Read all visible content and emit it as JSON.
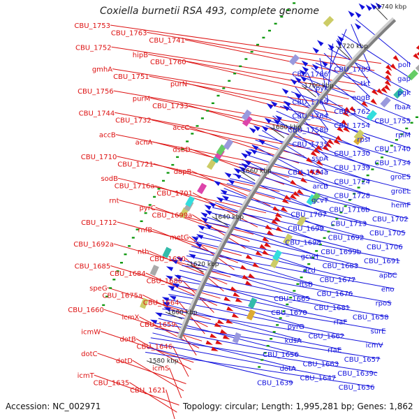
{
  "title": "Coxiella burnetii RSA 493, complete genome",
  "accession_text": "Accession: NC_002971",
  "summary_text": "Topology: circular; Length: 1,995,281 bp; Genes: 1,862",
  "colors": {
    "backbone": "#808080",
    "forward": "#dd1111",
    "reverse": "#1111dd",
    "dots": "#119911",
    "ticks": "#333333"
  },
  "position_ticks": [
    "1740 kbp",
    "1720 kbp",
    "1700 kbp",
    "1680 kbp",
    "1660 kbp",
    "1640 kbp",
    "1620 kbp",
    "1600 kbp",
    "1580 kbp"
  ],
  "forward_labels": [
    "CBU_1753",
    "CBU_1763",
    "CBU_1741",
    "CBU_1752",
    "hipB",
    "CBU_1760",
    "gmhA",
    "CBU_1751",
    "purN",
    "CBU_1756",
    "purM",
    "CBU_1733",
    "CBU_1744",
    "CBU_1732",
    "accC",
    "accB",
    "acnA",
    "dsbD",
    "CBU_1710",
    "CBU_1721",
    "dapB",
    "sodB",
    "CBU_1716a",
    "CBU_1701",
    "rnt",
    "pyrC",
    "CBU_1699a",
    "CBU_1712",
    "rnfB",
    "metG",
    "CBU_1692a",
    "nth",
    "CBU_1690",
    "CBU_1685",
    "CBU_1684",
    "CBU_1686",
    "speG",
    "CBU_1675a",
    "CBU_1664",
    "CBU_1660",
    "icmX",
    "CBU_1659",
    "icmW",
    "dotB",
    "CBU_1646",
    "dotC",
    "dotD",
    "icmS",
    "icmT",
    "CBU_1635",
    "CBU_1621"
  ],
  "reverse_labels": [
    "polI",
    "CBU_1789",
    "CBU_1786",
    "gap",
    "tkt",
    "pyk",
    "pgk",
    "engB",
    "CBU_1769",
    "fbaA",
    "CBU_1762",
    "CBU_1764",
    "CBU_1755",
    "CBU_1754",
    "CBU_1758b",
    "rplM",
    "rpsI",
    "CBU_1735",
    "CBU_1740",
    "CBU_1730",
    "sspA",
    "CBU_1734",
    "CBU_1739",
    "CBU_1724a",
    "groES",
    "CBU_1724",
    "arcB",
    "groEL",
    "CBU_1728",
    "gcvT",
    "hemF",
    "CBU_1716b",
    "CBU_1707",
    "CBU_1702",
    "CBU_1713",
    "CBU_1699",
    "CBU_1705",
    "CBU_1692",
    "CBU_1698",
    "CBU_1706",
    "CBU_1699b",
    "gcvH",
    "CBU_1691",
    "CBU_1683",
    "dcd",
    "apbC",
    "CBU_1677",
    "ftsB",
    "eno",
    "CBU_1676",
    "CBU_1665",
    "rpoS",
    "CBU_1681",
    "CBU_1670",
    "CBU_1658",
    "rfaF",
    "pyrG",
    "surE",
    "CBU_1662",
    "kdsA",
    "icmV",
    "rfaE",
    "CBU_1656",
    "CBU_1657",
    "CBU_1663",
    "dotA",
    "CBU_1639c",
    "CBU_1647",
    "CBU_1639",
    "CBU_1636"
  ]
}
